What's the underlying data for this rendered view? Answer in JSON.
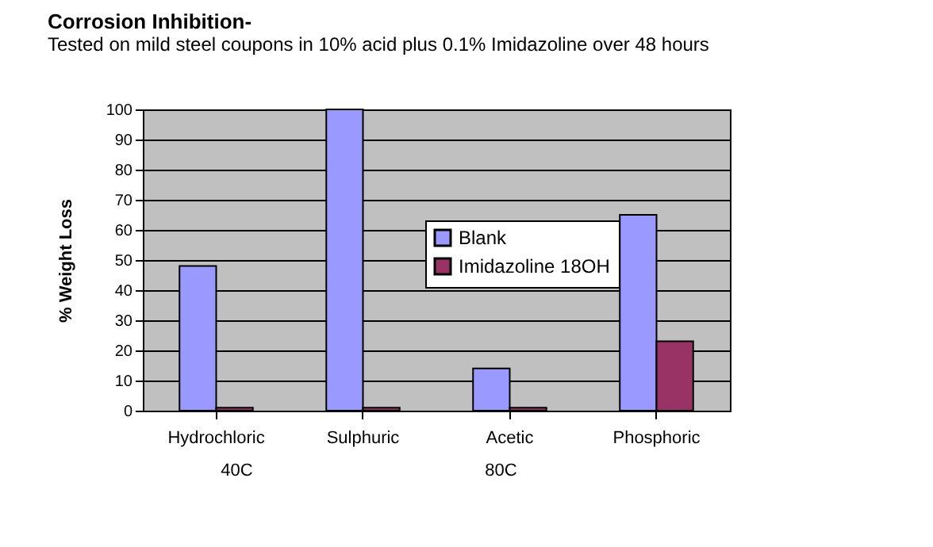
{
  "chart_data": {
    "type": "bar",
    "title": "Corrosion Inhibition-",
    "subtitle": "Tested on mild steel coupons in 10% acid plus 0.1% Imidazoline over 48 hours",
    "ylabel": "% Weight Loss",
    "categories": [
      "Hydrochloric",
      "Sulphuric",
      "Acetic",
      "Phosphoric"
    ],
    "series": [
      {
        "name": "Blank",
        "color": "#9999ff",
        "values": [
          48,
          100,
          14,
          65
        ]
      },
      {
        "name": "Imidazoline 18OH",
        "color": "#993366",
        "values": [
          1,
          1,
          1,
          23
        ]
      }
    ],
    "ylim": [
      0,
      100
    ],
    "yticks": [
      0,
      10,
      20,
      30,
      40,
      50,
      60,
      70,
      80,
      90,
      100
    ],
    "grid": "y",
    "legend": "top right",
    "annotations": [
      "40C",
      "80C"
    ]
  }
}
